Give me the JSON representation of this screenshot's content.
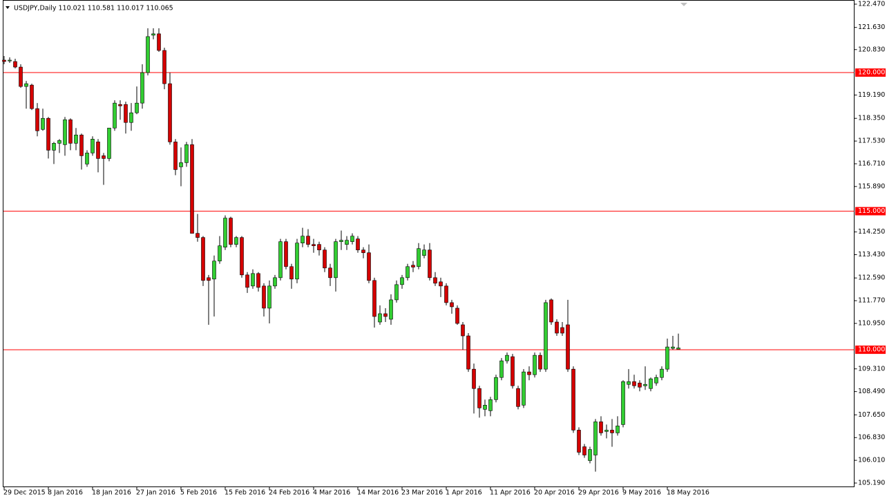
{
  "chart_data": {
    "type": "candlestick",
    "title": "USDJPY,Daily  110.021 110.581 110.017 110.065",
    "up_color": "#32cd32",
    "down_color": "#d40000",
    "wick_color": "#000000",
    "categories": [
      "29 Dec 2015",
      null,
      null,
      null,
      null,
      null,
      null,
      null,
      "8 Jan 2016",
      null,
      null,
      null,
      null,
      null,
      null,
      null,
      "18 Jan 2016",
      null,
      null,
      null,
      null,
      null,
      null,
      null,
      "27 Jan 2016",
      null,
      null,
      null,
      null,
      null,
      null,
      null,
      "5 Feb 2016",
      null,
      null,
      null,
      null,
      null,
      null,
      null,
      "15 Feb 2016",
      null,
      null,
      null,
      null,
      null,
      null,
      null,
      "24 Feb 2016",
      null,
      null,
      null,
      null,
      null,
      null,
      null,
      "4 Mar 2016",
      null,
      null,
      null,
      null,
      null,
      null,
      null,
      "14 Mar 2016",
      null,
      null,
      null,
      null,
      null,
      null,
      null,
      "23 Mar 2016",
      null,
      null,
      null,
      null,
      null,
      null,
      null,
      "1 Apr 2016",
      null,
      null,
      null,
      null,
      null,
      null,
      null,
      "11 Apr 2016",
      null,
      null,
      null,
      null,
      null,
      null,
      null,
      "20 Apr 2016",
      null,
      null,
      null,
      null,
      null,
      null,
      null,
      "29 Apr 2016",
      null,
      null,
      null,
      null,
      null,
      null,
      null,
      "9 May 2016",
      null,
      null,
      null,
      null,
      null,
      null,
      null,
      "18 May 2016",
      null,
      null
    ],
    "open": [
      120.45,
      120.42,
      120.4,
      120.2,
      119.5,
      119.55,
      118.7,
      117.95,
      118.35,
      117.2,
      117.45,
      117.4,
      118.3,
      117.45,
      117.75,
      116.7,
      117.1,
      117.5,
      117.0,
      116.9,
      118.0,
      118.85,
      118.85,
      118.2,
      118.55,
      118.9,
      120.0,
      121.35,
      121.4,
      120.8,
      119.6,
      117.5,
      116.6,
      116.75,
      117.4,
      114.2,
      114.05,
      112.6,
      112.55,
      113.2,
      113.7,
      114.75,
      113.8,
      114.05,
      112.7,
      112.3,
      112.75,
      112.3,
      111.5,
      112.3,
      112.6,
      113.9,
      113.0,
      112.55,
      113.85,
      114.1,
      113.8,
      113.8,
      113.6,
      112.95,
      112.6,
      113.9,
      113.8,
      113.9,
      114.0,
      113.6,
      113.5,
      112.5,
      111.0,
      111.3,
      111.1,
      111.8,
      112.35,
      112.6,
      113.05,
      113.0,
      113.4,
      113.6,
      112.6,
      112.45,
      112.3,
      111.7,
      111.5,
      110.9,
      110.5,
      109.3,
      108.6,
      107.85,
      107.8,
      108.2,
      109.0,
      109.6,
      109.75,
      108.6,
      108.0,
      109.2,
      109.1,
      109.8,
      109.3,
      111.8,
      111.0,
      110.8,
      110.9,
      109.3,
      107.1,
      106.5,
      106.0,
      106.2,
      107.4,
      107.05,
      107.1,
      107.0,
      107.3,
      108.75,
      108.85,
      108.8,
      108.7,
      108.6,
      108.8,
      109.0,
      109.3,
      110.05,
      110.021
    ],
    "high": [
      120.6,
      120.55,
      120.5,
      120.3,
      119.7,
      119.6,
      118.9,
      118.7,
      118.4,
      117.5,
      117.6,
      118.4,
      118.35,
      118.0,
      117.8,
      117.2,
      117.7,
      117.6,
      117.1,
      118.0,
      119.0,
      119.0,
      118.95,
      118.9,
      119.5,
      120.3,
      121.6,
      121.6,
      121.6,
      120.9,
      120.0,
      117.6,
      117.3,
      117.5,
      117.6,
      114.9,
      114.1,
      112.7,
      113.4,
      114.1,
      114.85,
      114.8,
      114.1,
      114.1,
      112.8,
      112.9,
      112.8,
      112.4,
      112.5,
      112.7,
      114.0,
      114.0,
      113.1,
      114.0,
      114.4,
      114.35,
      114.0,
      113.9,
      113.7,
      113.1,
      114.0,
      114.3,
      114.1,
      114.2,
      114.1,
      113.7,
      113.8,
      112.6,
      111.6,
      111.5,
      112.0,
      112.5,
      112.7,
      113.1,
      113.2,
      113.85,
      113.8,
      113.85,
      112.8,
      112.6,
      112.4,
      111.8,
      111.6,
      111.0,
      110.6,
      109.5,
      108.7,
      108.2,
      108.3,
      109.1,
      109.7,
      109.9,
      109.85,
      108.7,
      109.3,
      109.4,
      109.9,
      109.9,
      111.8,
      111.85,
      111.1,
      111.0,
      111.8,
      109.4,
      107.2,
      106.6,
      106.5,
      107.5,
      107.6,
      107.3,
      107.5,
      107.6,
      108.9,
      109.3,
      109.1,
      108.9,
      109.4,
      109.0,
      109.1,
      109.4,
      110.4,
      110.5,
      110.581
    ],
    "low": [
      120.3,
      120.35,
      120.15,
      119.45,
      118.7,
      118.65,
      117.7,
      117.9,
      116.9,
      116.7,
      117.1,
      117.0,
      117.2,
      117.2,
      116.5,
      116.6,
      117.0,
      116.4,
      115.95,
      116.8,
      117.9,
      118.3,
      117.8,
      117.9,
      118.5,
      118.7,
      119.9,
      121.2,
      120.75,
      119.4,
      117.4,
      116.3,
      115.9,
      116.6,
      114.2,
      113.9,
      112.3,
      110.9,
      111.2,
      113.1,
      113.6,
      113.7,
      113.7,
      112.6,
      112.05,
      112.2,
      112.1,
      111.2,
      110.95,
      112.2,
      112.5,
      112.9,
      112.2,
      112.4,
      113.7,
      113.7,
      113.5,
      113.4,
      112.8,
      112.3,
      112.1,
      113.6,
      113.6,
      113.8,
      113.5,
      113.3,
      112.4,
      110.8,
      110.9,
      111.0,
      110.9,
      111.7,
      112.2,
      112.5,
      112.8,
      112.9,
      113.3,
      112.5,
      112.3,
      111.9,
      111.6,
      111.3,
      110.9,
      110.0,
      109.2,
      107.7,
      107.55,
      107.6,
      107.6,
      108.1,
      108.9,
      109.5,
      108.6,
      107.85,
      107.9,
      108.9,
      109.0,
      109.2,
      109.2,
      110.9,
      110.5,
      110.5,
      109.2,
      107.0,
      106.2,
      106.1,
      105.9,
      105.6,
      106.9,
      106.8,
      106.5,
      106.9,
      107.2,
      108.6,
      108.6,
      108.5,
      108.55,
      108.5,
      108.7,
      108.9,
      109.2,
      110.0,
      110.017
    ],
    "close": [
      120.4,
      120.45,
      120.2,
      119.5,
      119.6,
      118.7,
      117.9,
      118.35,
      117.2,
      117.45,
      117.55,
      118.3,
      117.45,
      117.75,
      117.0,
      117.1,
      117.6,
      116.9,
      116.9,
      118.0,
      118.9,
      118.8,
      118.2,
      118.55,
      118.9,
      120.0,
      121.3,
      121.4,
      120.8,
      119.6,
      117.5,
      116.5,
      116.75,
      117.4,
      114.2,
      114.05,
      112.5,
      112.5,
      113.2,
      113.75,
      114.75,
      113.8,
      114.05,
      112.7,
      112.25,
      112.75,
      112.25,
      111.5,
      112.3,
      112.6,
      113.9,
      113.0,
      112.55,
      113.85,
      114.1,
      113.8,
      113.75,
      113.6,
      112.95,
      112.6,
      113.9,
      113.95,
      113.95,
      114.1,
      113.6,
      113.5,
      112.5,
      111.2,
      111.3,
      111.2,
      111.8,
      112.35,
      112.6,
      113.0,
      112.98,
      113.65,
      113.6,
      112.6,
      112.4,
      112.3,
      111.7,
      111.55,
      110.95,
      110.5,
      109.3,
      108.6,
      107.9,
      108.0,
      108.2,
      109.0,
      109.6,
      109.8,
      108.7,
      107.95,
      109.2,
      109.1,
      109.8,
      109.3,
      111.7,
      111.0,
      110.6,
      110.6,
      109.3,
      107.1,
      106.3,
      106.2,
      106.4,
      107.4,
      107.0,
      107.1,
      107.0,
      107.25,
      108.85,
      108.85,
      108.7,
      108.65,
      108.75,
      108.95,
      109.0,
      109.3,
      110.1,
      110.1,
      110.065
    ],
    "ylim": [
      105.19,
      122.47
    ],
    "yticks": [
      {
        "value": 122.47,
        "label": "122.470"
      },
      {
        "value": 121.63,
        "label": "121.630"
      },
      {
        "value": 120.83,
        "label": "120.830"
      },
      {
        "value": 119.19,
        "label": "119.190"
      },
      {
        "value": 118.35,
        "label": "118.350"
      },
      {
        "value": 117.53,
        "label": "117.530"
      },
      {
        "value": 116.71,
        "label": "116.710"
      },
      {
        "value": 115.89,
        "label": "115.890"
      },
      {
        "value": 114.25,
        "label": "114.250"
      },
      {
        "value": 113.43,
        "label": "113.430"
      },
      {
        "value": 112.59,
        "label": "112.590"
      },
      {
        "value": 111.77,
        "label": "111.770"
      },
      {
        "value": 110.95,
        "label": "110.950"
      },
      {
        "value": 109.31,
        "label": "109.310"
      },
      {
        "value": 108.49,
        "label": "108.490"
      },
      {
        "value": 107.65,
        "label": "107.650"
      },
      {
        "value": 106.83,
        "label": "106.830"
      },
      {
        "value": 106.01,
        "label": "106.010"
      },
      {
        "value": 105.19,
        "label": "105.190"
      }
    ],
    "hlines": [
      {
        "value": 120,
        "label": "120.000"
      },
      {
        "value": 115,
        "label": "115.000"
      },
      {
        "value": 110,
        "label": "110.000"
      }
    ],
    "hline_color": "#ff0000"
  }
}
